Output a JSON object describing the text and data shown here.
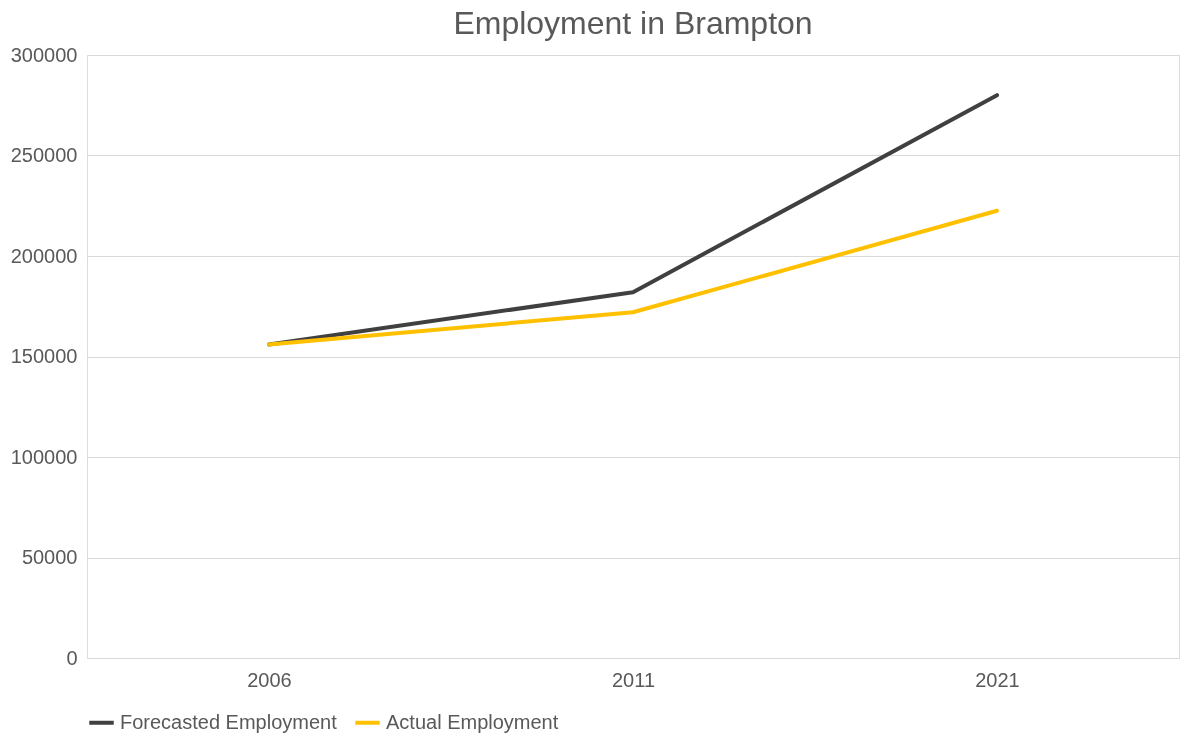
{
  "chart_data": {
    "type": "line",
    "title": "Employment in Brampton",
    "categories": [
      "2006",
      "2011",
      "2021"
    ],
    "series": [
      {
        "name": "Forecasted Employment",
        "color": "#404040",
        "values": [
          156000,
          182000,
          280000
        ]
      },
      {
        "name": "Actual Employment",
        "color": "#ffc000",
        "values": [
          156000,
          172000,
          222500
        ]
      }
    ],
    "ylim": [
      0,
      300000
    ],
    "yticks": [
      0,
      50000,
      100000,
      150000,
      200000,
      250000,
      300000
    ],
    "grid": "y",
    "legend": "bottom"
  }
}
